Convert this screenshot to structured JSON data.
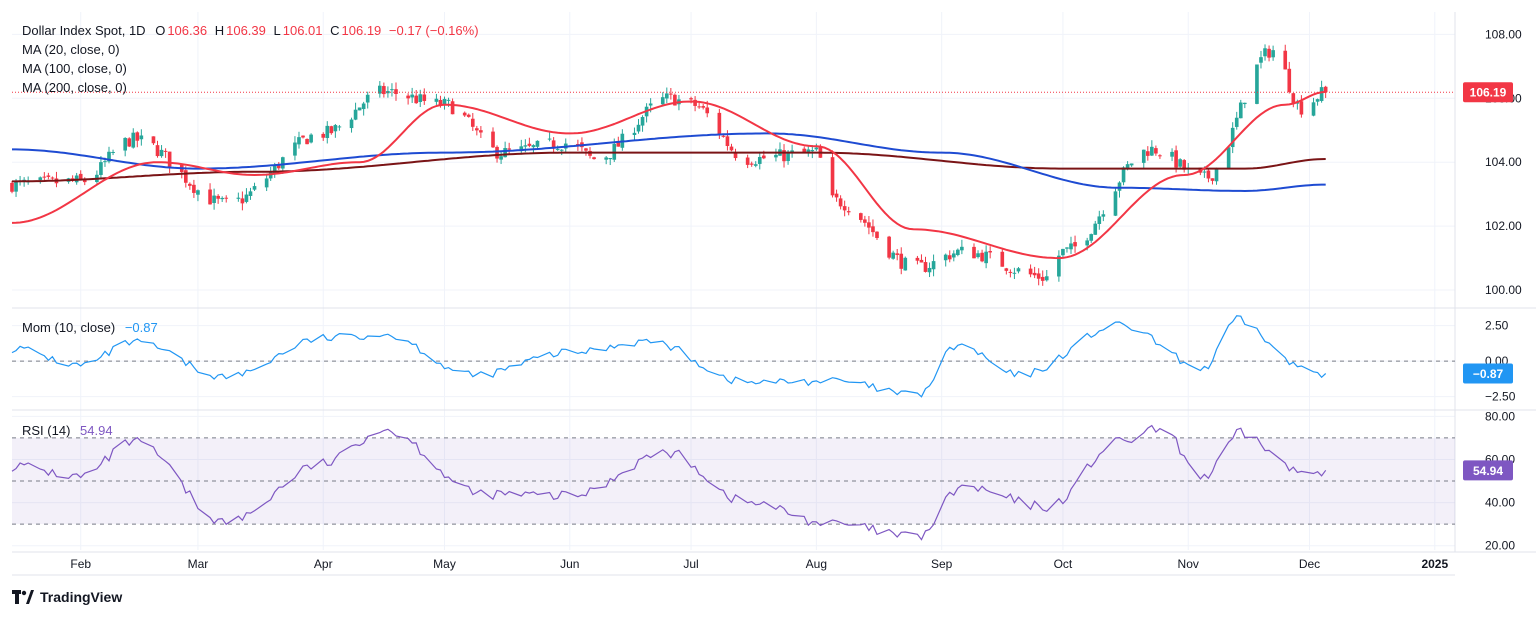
{
  "header": {
    "symbol": "Dollar Index Spot, 1D",
    "open_label": "O",
    "open": "106.36",
    "high_label": "H",
    "high": "106.39",
    "low_label": "L",
    "low": "106.01",
    "close_label": "C",
    "close": "106.19",
    "change": "−0.17 (−0.16%)"
  },
  "indicators": {
    "ma20": "MA (20, close, 0)",
    "ma100": "MA (100, close, 0)",
    "ma200": "MA (200, close, 0)",
    "mom_label": "Mom (10, close)",
    "mom_value": "−0.87",
    "rsi_label": "RSI (14)",
    "rsi_value": "54.94"
  },
  "branding": {
    "logo_text": "TradingView"
  },
  "colors": {
    "up": "#26a69a",
    "down": "#f23645",
    "ma20": "#f23645",
    "ma100": "#1e4bd2",
    "ma200": "#7a1416",
    "momentum": "#2196f3",
    "rsi": "#7e57c2"
  },
  "chart_data": [
    {
      "type": "candlestick",
      "name": "Dollar Index Spot, 1D",
      "x_tick_labels": [
        "Feb",
        "Mar",
        "Apr",
        "May",
        "Jun",
        "Jul",
        "Aug",
        "Sep",
        "Oct",
        "Nov",
        "Dec",
        "2025"
      ],
      "y_tick_labels": [
        "100.00",
        "102.00",
        "104.00",
        "106.00",
        "108.00"
      ],
      "ylim": [
        99.5,
        108.7
      ],
      "last_price_label": "106.19",
      "monthly_path": [
        {
          "date": "2024-01-15",
          "close": 103.3
        },
        {
          "date": "2024-02-01",
          "close": 103.4
        },
        {
          "date": "2024-02-14",
          "close": 104.7
        },
        {
          "date": "2024-03-08",
          "close": 102.7
        },
        {
          "date": "2024-04-01",
          "close": 104.9
        },
        {
          "date": "2024-04-16",
          "close": 106.2
        },
        {
          "date": "2024-05-01",
          "close": 105.8
        },
        {
          "date": "2024-05-15",
          "close": 104.3
        },
        {
          "date": "2024-06-01",
          "close": 104.6
        },
        {
          "date": "2024-06-07",
          "close": 104.1
        },
        {
          "date": "2024-06-26",
          "close": 106.0
        },
        {
          "date": "2024-07-01",
          "close": 105.8
        },
        {
          "date": "2024-07-15",
          "close": 104.1
        },
        {
          "date": "2024-08-01",
          "close": 104.3
        },
        {
          "date": "2024-08-05",
          "close": 102.8
        },
        {
          "date": "2024-08-26",
          "close": 100.7
        },
        {
          "date": "2024-09-06",
          "close": 101.2
        },
        {
          "date": "2024-09-27",
          "close": 100.4
        },
        {
          "date": "2024-10-01",
          "close": 101.2
        },
        {
          "date": "2024-10-23",
          "close": 104.4
        },
        {
          "date": "2024-11-05",
          "close": 103.5
        },
        {
          "date": "2024-11-22",
          "close": 107.5
        },
        {
          "date": "2024-11-29",
          "close": 105.7
        },
        {
          "date": "2024-12-05",
          "close": 106.19
        }
      ],
      "ma20_path": [
        [
          "2024-01-15",
          102.1
        ],
        [
          "2024-02-20",
          104.0
        ],
        [
          "2024-03-15",
          103.6
        ],
        [
          "2024-04-10",
          104.0
        ],
        [
          "2024-05-01",
          105.8
        ],
        [
          "2024-06-01",
          104.9
        ],
        [
          "2024-07-01",
          105.9
        ],
        [
          "2024-08-01",
          104.5
        ],
        [
          "2024-08-25",
          101.9
        ],
        [
          "2024-09-30",
          101.0
        ],
        [
          "2024-10-31",
          103.6
        ],
        [
          "2024-11-25",
          105.8
        ],
        [
          "2024-12-05",
          106.2
        ]
      ],
      "ma100_path": [
        [
          "2024-01-15",
          104.4
        ],
        [
          "2024-03-01",
          103.8
        ],
        [
          "2024-05-01",
          104.3
        ],
        [
          "2024-07-20",
          104.9
        ],
        [
          "2024-09-01",
          104.3
        ],
        [
          "2024-10-15",
          103.2
        ],
        [
          "2024-11-15",
          103.1
        ],
        [
          "2024-12-05",
          103.3
        ]
      ],
      "ma200_path": [
        [
          "2024-01-15",
          103.4
        ],
        [
          "2024-03-15",
          103.7
        ],
        [
          "2024-06-01",
          104.3
        ],
        [
          "2024-08-01",
          104.3
        ],
        [
          "2024-10-01",
          103.8
        ],
        [
          "2024-11-15",
          103.8
        ],
        [
          "2024-12-05",
          104.1
        ]
      ]
    },
    {
      "type": "line",
      "name": "Mom (10, close)",
      "y_tick_labels": [
        "2.50",
        "0.00",
        "−2.50"
      ],
      "ylim": [
        -3.3,
        3.6
      ],
      "last_value_label": "−0.87",
      "path": [
        [
          "2024-01-15",
          0.9
        ],
        [
          "2024-02-01",
          -0.3
        ],
        [
          "2024-02-14",
          1.3
        ],
        [
          "2024-03-08",
          -1.1
        ],
        [
          "2024-04-01",
          1.6
        ],
        [
          "2024-04-16",
          1.9
        ],
        [
          "2024-05-08",
          -1.0
        ],
        [
          "2024-06-01",
          0.6
        ],
        [
          "2024-06-20",
          1.4
        ],
        [
          "2024-07-15",
          -1.5
        ],
        [
          "2024-08-05",
          -1.4
        ],
        [
          "2024-08-26",
          -2.4
        ],
        [
          "2024-09-05",
          1.1
        ],
        [
          "2024-09-20",
          -1.0
        ],
        [
          "2024-10-15",
          2.5
        ],
        [
          "2024-11-05",
          -0.5
        ],
        [
          "2024-11-13",
          2.9
        ],
        [
          "2024-11-29",
          -0.4
        ],
        [
          "2024-12-05",
          -0.87
        ]
      ]
    },
    {
      "type": "line",
      "name": "RSI (14)",
      "y_tick_labels": [
        "80.00",
        "60.00",
        "40.00",
        "20.00"
      ],
      "ylim": [
        18,
        82
      ],
      "last_value_label": "54.94",
      "path": [
        [
          "2024-01-15",
          57
        ],
        [
          "2024-02-01",
          52
        ],
        [
          "2024-02-14",
          68
        ],
        [
          "2024-03-08",
          31
        ],
        [
          "2024-04-01",
          58
        ],
        [
          "2024-04-16",
          74
        ],
        [
          "2024-05-10",
          44
        ],
        [
          "2024-06-01",
          43
        ],
        [
          "2024-06-25",
          63
        ],
        [
          "2024-07-15",
          40
        ],
        [
          "2024-08-05",
          30
        ],
        [
          "2024-08-26",
          24
        ],
        [
          "2024-09-06",
          47
        ],
        [
          "2024-09-27",
          38
        ],
        [
          "2024-10-15",
          68
        ],
        [
          "2024-10-25",
          74
        ],
        [
          "2024-11-05",
          52
        ],
        [
          "2024-11-14",
          72
        ],
        [
          "2024-11-29",
          54
        ],
        [
          "2024-12-05",
          54.94
        ]
      ]
    }
  ]
}
